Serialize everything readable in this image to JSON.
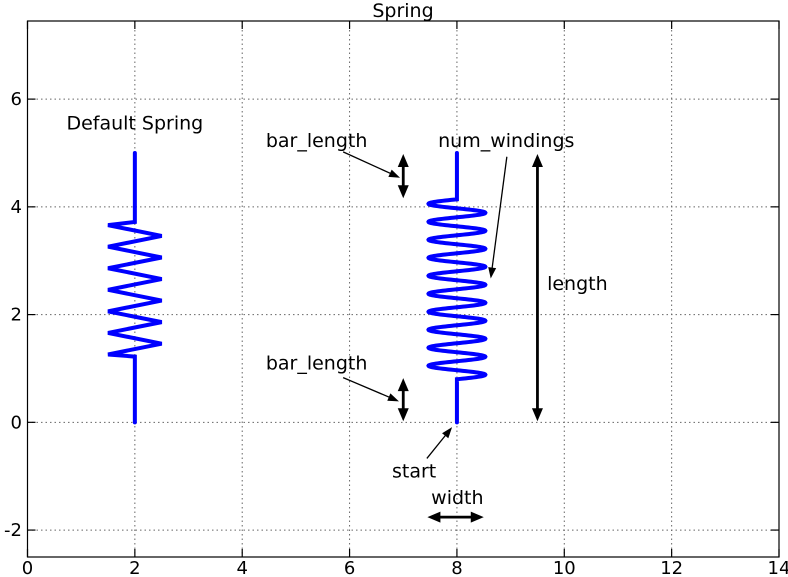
{
  "chart_data": {
    "type": "line",
    "title": "Spring",
    "xlabel": "",
    "ylabel": "",
    "xlim": [
      0,
      14
    ],
    "ylim": [
      -2.5,
      7.45
    ],
    "xticks": [
      0,
      2,
      4,
      6,
      8,
      10,
      12,
      14
    ],
    "xtick_labels": [
      "0",
      "2",
      "4",
      "6",
      "8",
      "10",
      "12",
      "14"
    ],
    "yticks": [
      -2,
      0,
      2,
      4,
      6
    ],
    "ytick_labels": [
      "-2",
      "0",
      "2",
      "4",
      "6"
    ],
    "grid": true,
    "grid_style": "dotted",
    "legend": "none",
    "springs": [
      {
        "id": "spring-default",
        "shape": "zigzag",
        "center_x": 2,
        "start_y": 0,
        "end_y": 5,
        "bottom_bar_top": 1.22,
        "top_bar_bottom": 3.72,
        "zig_y_top": 3.66,
        "zig_y_bottom": 1.26,
        "half_width": 0.5,
        "num_diagonals": 12
      },
      {
        "id": "spring-annotated",
        "shape": "sine",
        "center_x": 8,
        "start_y": 0,
        "end_y": 5,
        "bottom_bar_top": 0.8,
        "top_bar_bottom": 4.14,
        "amplitude": 0.53,
        "num_windings": 10
      }
    ],
    "labels": [
      {
        "id": "default-spring-label",
        "text": "Default Spring",
        "x": 2.0,
        "y": 5.44,
        "anchor": "middle"
      },
      {
        "id": "bar-length-top-label",
        "text": "bar_length",
        "x": 4.44,
        "y": 5.11,
        "anchor": "start"
      },
      {
        "id": "num-windings-label",
        "text": "num_windings",
        "x": 7.65,
        "y": 5.11,
        "anchor": "start"
      },
      {
        "id": "length-label",
        "text": "length",
        "x": 9.68,
        "y": 2.46,
        "anchor": "start"
      },
      {
        "id": "bar-length-bottom-label",
        "text": "bar_length",
        "x": 4.44,
        "y": 0.98,
        "anchor": "start"
      },
      {
        "id": "start-label",
        "text": "start",
        "x": 6.79,
        "y": -1.02,
        "anchor": "start"
      },
      {
        "id": "width-label",
        "text": "width",
        "x": 7.52,
        "y": -1.52,
        "anchor": "start"
      }
    ],
    "double_arrows": [
      {
        "id": "bar-length-top-arrow",
        "x1": 7.0,
        "y1": 4.16,
        "x2": 7.0,
        "y2": 4.98
      },
      {
        "id": "bar-length-bottom-arrow",
        "x1": 7.0,
        "y1": 0.02,
        "x2": 7.0,
        "y2": 0.82
      },
      {
        "id": "length-arrow",
        "x1": 9.5,
        "y1": 0.02,
        "x2": 9.5,
        "y2": 4.98
      },
      {
        "id": "width-arrow",
        "x1": 7.45,
        "y1": -1.76,
        "x2": 8.5,
        "y2": -1.76
      }
    ],
    "pointer_arrows": [
      {
        "id": "bar-length-top-pointer",
        "x1": 5.88,
        "y1": 5.02,
        "x2": 6.94,
        "y2": 4.54
      },
      {
        "id": "bar-length-bottom-pointer",
        "x1": 5.88,
        "y1": 0.83,
        "x2": 6.92,
        "y2": 0.39
      },
      {
        "id": "num-windings-pointer",
        "x1": 8.93,
        "y1": 4.93,
        "x2": 8.63,
        "y2": 2.67
      },
      {
        "id": "start-pointer",
        "x1": 7.44,
        "y1": -0.67,
        "x2": 7.91,
        "y2": -0.09
      }
    ],
    "colors": {
      "spring": "#0000ff",
      "annotation": "#000000",
      "grid": "#666666",
      "axis": "#000000",
      "background": "#ffffff"
    }
  }
}
